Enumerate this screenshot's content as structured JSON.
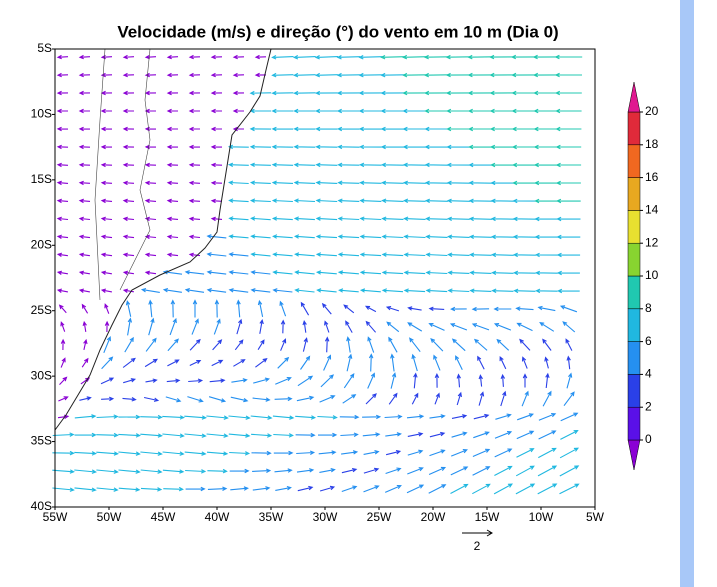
{
  "header": {
    "title": "Velocidade (m/s) e direção (°) do vento em 10 m (Dia 0)"
  },
  "map": {
    "lat_ticks": [
      "5S",
      "10S",
      "15S",
      "20S",
      "25S",
      "30S",
      "35S",
      "40S"
    ],
    "lon_ticks": [
      "55W",
      "50W",
      "45W",
      "40W",
      "35W",
      "30W",
      "25W",
      "20W",
      "15W",
      "10W",
      "5W"
    ],
    "reference_vector": "2"
  },
  "colorbar": {
    "labels": [
      0,
      2,
      4,
      6,
      8,
      10,
      12,
      14,
      16,
      18,
      20
    ],
    "colors": [
      "#8a00d4",
      "#5a10e8",
      "#2a40e8",
      "#2590f0",
      "#20b8e0",
      "#20c8b0",
      "#88d430",
      "#e8e030",
      "#e8a820",
      "#f06820",
      "#e02a3a",
      "#e01890"
    ]
  }
}
